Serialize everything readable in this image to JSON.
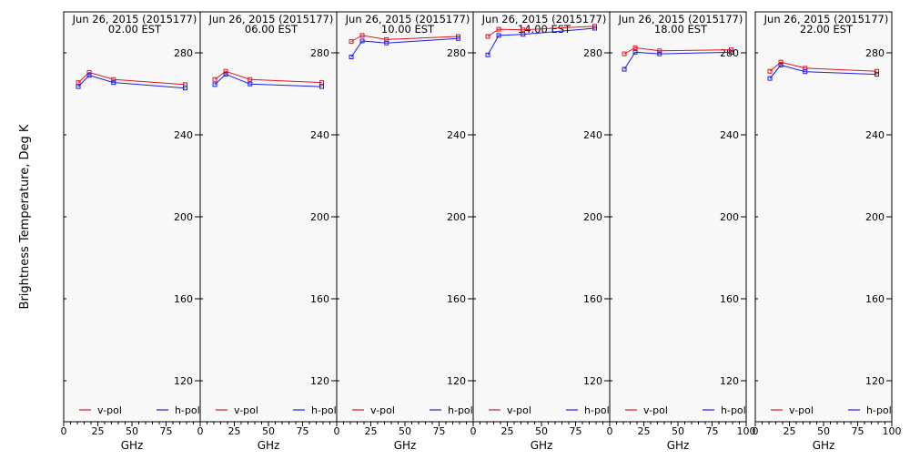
{
  "y_axis_label": "Brightness Temperature, Deg K",
  "chart_data": {
    "type": "line",
    "shared": {
      "xlabel": "GHz",
      "ylabel": "Brightness Temperature, Deg K",
      "xlim": [
        0,
        100
      ],
      "ylim": [
        100,
        300
      ],
      "x_ticks": [
        0,
        25,
        50,
        75,
        100
      ],
      "x_tick_labels": [
        "0",
        "25",
        "50",
        "75",
        "100"
      ],
      "y_ticks": [
        120,
        160,
        200,
        240,
        280
      ],
      "y_tick_labels": [
        "120",
        "160",
        "200",
        "240",
        "280"
      ],
      "frequencies_ghz": [
        10.7,
        18.7,
        36.5,
        89.0
      ],
      "legend": [
        "v-pol",
        "h-pol"
      ],
      "legend_position": "bottom",
      "colors": {
        "v-pol": "#e0141e",
        "h-pol": "#1e1ee0"
      },
      "background": "#f8f8f8"
    },
    "panels": [
      {
        "date": "Jun 26, 2015 (2015177)",
        "time": "02.00 EST",
        "series": [
          {
            "name": "v-pol",
            "values": [
              265.5,
              270.5,
              267.0,
              264.5
            ]
          },
          {
            "name": "h-pol",
            "values": [
              263.5,
              269.0,
              265.5,
              262.8
            ]
          }
        ]
      },
      {
        "date": "Jun 26, 2015 (2015177)",
        "time": "06.00 EST",
        "series": [
          {
            "name": "v-pol",
            "values": [
              267.0,
              271.0,
              267.0,
              265.5
            ]
          },
          {
            "name": "h-pol",
            "values": [
              264.5,
              269.5,
              264.8,
              263.5
            ]
          }
        ]
      },
      {
        "date": "Jun 26, 2015 (2015177)",
        "time": "10.00 EST",
        "series": [
          {
            "name": "v-pol",
            "values": [
              285.5,
              288.5,
              286.5,
              288.0
            ]
          },
          {
            "name": "h-pol",
            "values": [
              278.0,
              285.8,
              284.8,
              287.0
            ]
          }
        ]
      },
      {
        "date": "Jun 26, 2015 (2015177)",
        "time": "14.00 EST",
        "series": [
          {
            "name": "v-pol",
            "values": [
              288.0,
              291.5,
              291.2,
              293.0
            ]
          },
          {
            "name": "h-pol",
            "values": [
              279.0,
              288.5,
              289.0,
              292.0
            ]
          }
        ]
      },
      {
        "date": "Jun 26, 2015 (2015177)",
        "time": "18.00 EST",
        "series": [
          {
            "name": "v-pol",
            "values": [
              279.5,
              282.5,
              281.0,
              281.5
            ]
          },
          {
            "name": "h-pol",
            "values": [
              272.0,
              280.3,
              279.5,
              280.3
            ]
          }
        ]
      },
      {
        "date": "Jun 26, 2015 (2015177)",
        "time": "22.00 EST",
        "series": [
          {
            "name": "v-pol",
            "values": [
              271.0,
              275.5,
              272.5,
              271.0
            ]
          },
          {
            "name": "h-pol",
            "values": [
              267.5,
              274.0,
              270.8,
              269.5
            ]
          }
        ]
      }
    ]
  }
}
